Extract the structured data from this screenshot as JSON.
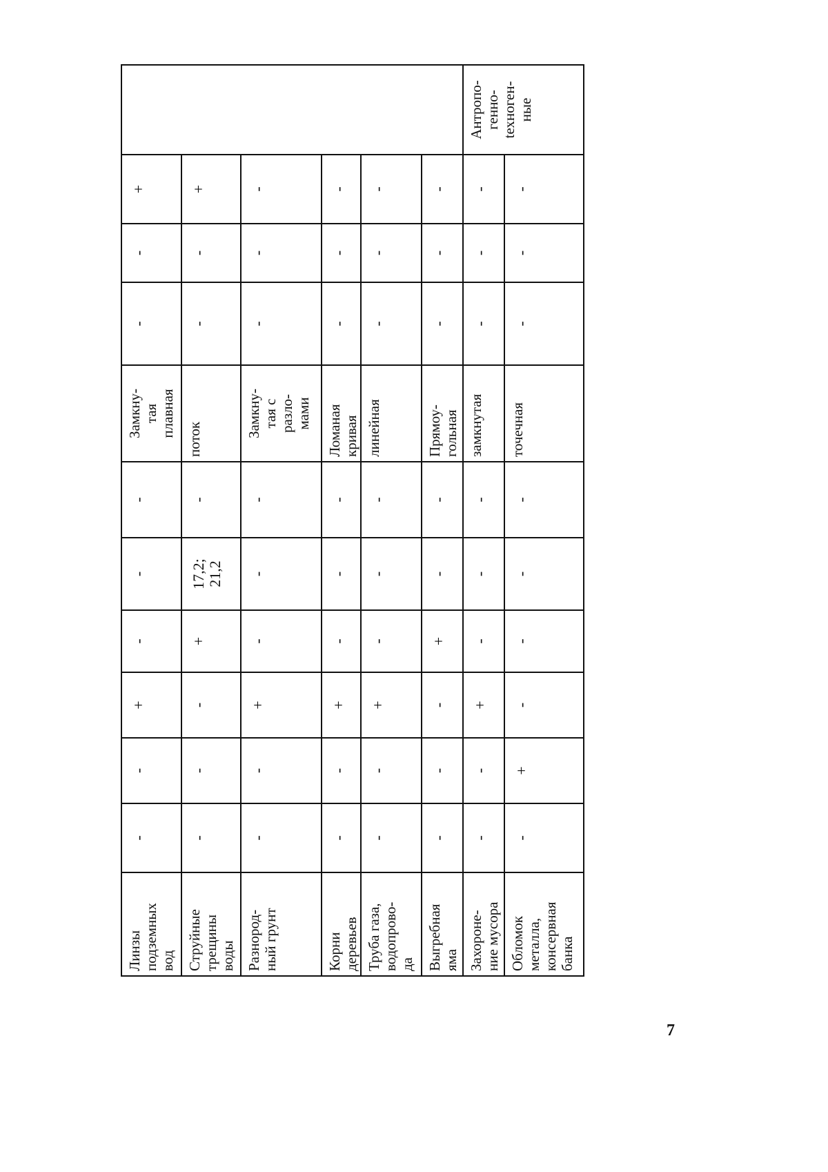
{
  "table": {
    "rows": [
      {
        "name": "Линзы\nподземных\nвод",
        "values": [
          "-",
          "-",
          "+",
          "-",
          "-",
          "-"
        ],
        "shape": "Замкну-\nтая\nплавная",
        "values2": [
          "-",
          "-",
          "+"
        ]
      },
      {
        "name": "Струйные\nтрещины\nводы",
        "values": [
          "-",
          "-",
          "-",
          "+",
          "17,2;\n21,2",
          "-"
        ],
        "shape": "поток",
        "values2": [
          "-",
          "-",
          "+"
        ]
      },
      {
        "name": "Разнород-\nный грунт",
        "values": [
          "-",
          "-",
          "+",
          "-",
          "-",
          "-"
        ],
        "shape": "Замкну-\nтая с\nразло-\nмами",
        "values2": [
          "-",
          "-",
          "-"
        ]
      },
      {
        "name": "Корни\nдеревьев",
        "values": [
          "-",
          "-",
          "+",
          "-",
          "-",
          "-"
        ],
        "shape": "Ломаная\nкривая",
        "values2": [
          "-",
          "-",
          "-"
        ]
      },
      {
        "name": "Труба газа,\nводопрово-\nда",
        "values": [
          "-",
          "-",
          "+",
          "-",
          "-",
          "-"
        ],
        "shape": "линейная",
        "values2": [
          "-",
          "-",
          "-"
        ]
      },
      {
        "name": "Выгребная\nяма",
        "values": [
          "-",
          "-",
          "-",
          "+",
          "-",
          "-"
        ],
        "shape": "Прямоу-\nгольная",
        "values2": [
          "-",
          "-",
          "-"
        ]
      },
      {
        "name": "Захороне-\nние мусора",
        "values": [
          "-",
          "-",
          "+",
          "-",
          "-",
          "-"
        ],
        "shape": "замкнутая",
        "values2": [
          "-",
          "-",
          "-"
        ]
      },
      {
        "name": "Обломок\nметалла,\nконсервная\nбанка",
        "values": [
          "-",
          "+",
          "-",
          "-",
          "-",
          "-"
        ],
        "shape": "точечная",
        "values2": [
          "-",
          "-",
          "-"
        ]
      }
    ],
    "category_blank": "",
    "category_anthropogenic": "Антропо-\nгенно-\ntехноген-\nные"
  },
  "page_number": "7"
}
